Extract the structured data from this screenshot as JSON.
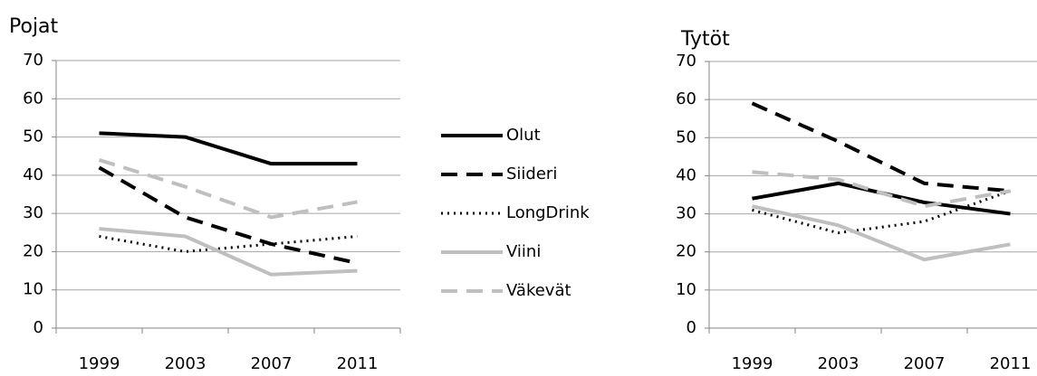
{
  "chart_data": [
    {
      "type": "line",
      "title": "Pojat",
      "categories": [
        "1999",
        "2003",
        "2007",
        "2011"
      ],
      "ylim": [
        0,
        70
      ],
      "yticks": [
        0,
        10,
        20,
        30,
        40,
        50,
        60,
        70
      ],
      "grid": true,
      "series": [
        {
          "name": "Olut",
          "color": "#000000",
          "dash": "solid",
          "values": [
            51,
            50,
            43,
            43
          ]
        },
        {
          "name": "Siideri",
          "color": "#000000",
          "dash": "dash",
          "values": [
            42,
            29,
            22,
            17
          ]
        },
        {
          "name": "LongDrink",
          "color": "#000000",
          "dash": "dot",
          "values": [
            24,
            20,
            22,
            24
          ]
        },
        {
          "name": "Viini",
          "color": "#bfbfbf",
          "dash": "solid",
          "values": [
            26,
            24,
            14,
            15
          ]
        },
        {
          "name": "Väkevät",
          "color": "#bfbfbf",
          "dash": "dash",
          "values": [
            44,
            37,
            29,
            33
          ]
        }
      ]
    },
    {
      "type": "line",
      "title": "Tytöt",
      "categories": [
        "1999",
        "2003",
        "2007",
        "2011"
      ],
      "ylim": [
        0,
        70
      ],
      "yticks": [
        0,
        10,
        20,
        30,
        40,
        50,
        60,
        70
      ],
      "grid": true,
      "series": [
        {
          "name": "Olut",
          "color": "#000000",
          "dash": "solid",
          "values": [
            34,
            38,
            33,
            30
          ]
        },
        {
          "name": "Siideri",
          "color": "#000000",
          "dash": "dash",
          "values": [
            59,
            49,
            38,
            36
          ]
        },
        {
          "name": "LongDrink",
          "color": "#000000",
          "dash": "dot",
          "values": [
            31,
            25,
            28,
            36
          ]
        },
        {
          "name": "Viini",
          "color": "#bfbfbf",
          "dash": "solid",
          "values": [
            32,
            27,
            18,
            22
          ]
        },
        {
          "name": "Väkevät",
          "color": "#bfbfbf",
          "dash": "dash",
          "values": [
            41,
            39,
            32,
            36
          ]
        }
      ]
    }
  ]
}
